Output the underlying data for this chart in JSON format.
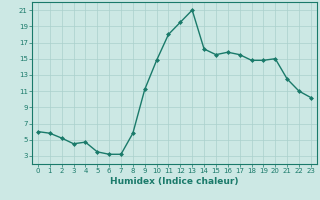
{
  "x": [
    0,
    1,
    2,
    3,
    4,
    5,
    6,
    7,
    8,
    9,
    10,
    11,
    12,
    13,
    14,
    15,
    16,
    17,
    18,
    19,
    20,
    21,
    22,
    23
  ],
  "y": [
    6.0,
    5.8,
    5.2,
    4.5,
    4.7,
    3.5,
    3.2,
    3.2,
    5.8,
    11.2,
    14.8,
    18.0,
    19.5,
    21.0,
    16.2,
    15.5,
    15.8,
    15.5,
    14.8,
    14.8,
    15.0,
    12.5,
    11.0,
    10.2
  ],
  "line_color": "#1a7a6a",
  "marker": "D",
  "marker_size": 2.0,
  "bg_color": "#cce8e4",
  "grid_color": "#aad0cc",
  "xlabel": "Humidex (Indice chaleur)",
  "xlim": [
    -0.5,
    23.5
  ],
  "ylim": [
    2,
    22
  ],
  "yticks": [
    3,
    5,
    7,
    9,
    11,
    13,
    15,
    17,
    19,
    21
  ],
  "xticks": [
    0,
    1,
    2,
    3,
    4,
    5,
    6,
    7,
    8,
    9,
    10,
    11,
    12,
    13,
    14,
    15,
    16,
    17,
    18,
    19,
    20,
    21,
    22,
    23
  ],
  "tick_fontsize": 5.0,
  "label_fontsize": 6.5,
  "line_width": 1.0
}
